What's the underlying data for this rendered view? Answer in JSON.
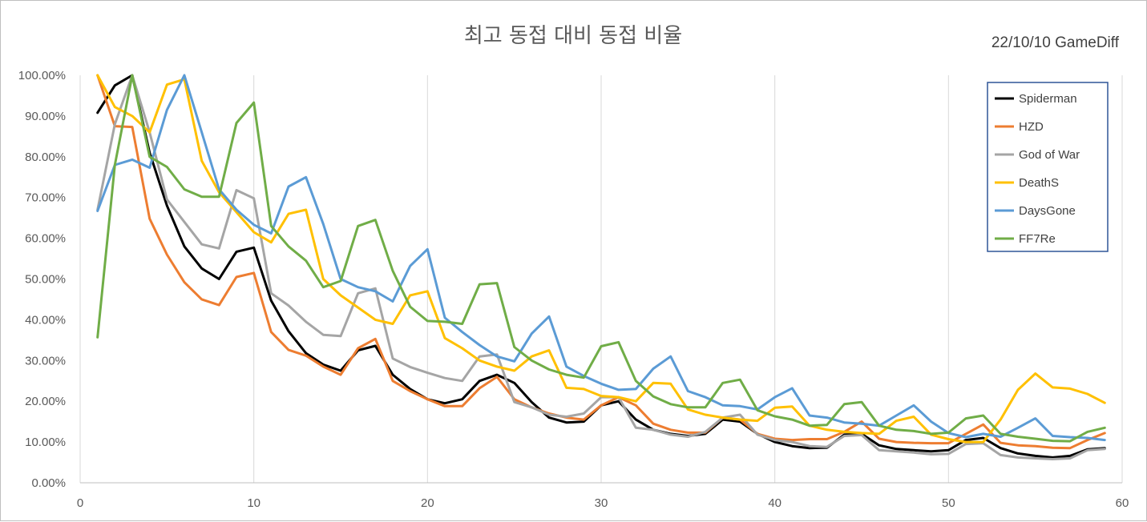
{
  "chart_data": {
    "type": "line",
    "title": "최고 동접 대비 동접 비율",
    "subtitle": "22/10/10 GameDiff",
    "xlabel": "",
    "ylabel": "",
    "xlim": [
      0,
      60
    ],
    "ylim": [
      0,
      1
    ],
    "x_ticks": [
      "0",
      "10",
      "20",
      "30",
      "40",
      "50",
      "60"
    ],
    "y_ticks": [
      "0.00%",
      "10.00%",
      "20.00%",
      "30.00%",
      "40.00%",
      "50.00%",
      "60.00%",
      "70.00%",
      "80.00%",
      "90.00%",
      "100.00%"
    ],
    "grid": "vertical",
    "legend_position": "top-right",
    "x": [
      1,
      2,
      3,
      4,
      5,
      6,
      7,
      8,
      9,
      10,
      11,
      12,
      13,
      14,
      15,
      16,
      17,
      18,
      19,
      20,
      21,
      22,
      23,
      24,
      25,
      26,
      27,
      28,
      29,
      30,
      31,
      32,
      33,
      34,
      35,
      36,
      37,
      38,
      39,
      40,
      41,
      42,
      43,
      44,
      45,
      46,
      47,
      48,
      49,
      50,
      51,
      52,
      53,
      54,
      55,
      56,
      57,
      58,
      59
    ],
    "series": [
      {
        "name": "Spiderman",
        "color": "#000000",
        "values": [
          0.908,
          0.975,
          1.0,
          0.81,
          0.68,
          0.58,
          0.526,
          0.5,
          0.567,
          0.577,
          0.447,
          0.372,
          0.318,
          0.29,
          0.275,
          0.325,
          0.336,
          0.265,
          0.23,
          0.205,
          0.195,
          0.205,
          0.25,
          0.265,
          0.245,
          0.198,
          0.16,
          0.148,
          0.15,
          0.19,
          0.2,
          0.155,
          0.13,
          0.12,
          0.115,
          0.12,
          0.155,
          0.15,
          0.12,
          0.1,
          0.09,
          0.085,
          0.086,
          0.118,
          0.12,
          0.092,
          0.083,
          0.08,
          0.077,
          0.08,
          0.105,
          0.11,
          0.085,
          0.072,
          0.066,
          0.062,
          0.066,
          0.082,
          0.085
        ]
      },
      {
        "name": "HZD",
        "color": "#ed7d31",
        "values": [
          1.0,
          0.875,
          0.873,
          0.648,
          0.56,
          0.492,
          0.45,
          0.436,
          0.505,
          0.515,
          0.37,
          0.326,
          0.312,
          0.285,
          0.265,
          0.33,
          0.353,
          0.25,
          0.225,
          0.205,
          0.188,
          0.188,
          0.232,
          0.26,
          0.205,
          0.185,
          0.17,
          0.16,
          0.155,
          0.19,
          0.21,
          0.19,
          0.145,
          0.13,
          0.123,
          0.123,
          0.16,
          0.155,
          0.12,
          0.108,
          0.105,
          0.107,
          0.107,
          0.125,
          0.15,
          0.108,
          0.1,
          0.098,
          0.097,
          0.097,
          0.12,
          0.143,
          0.098,
          0.092,
          0.09,
          0.086,
          0.085,
          0.105,
          0.122
        ]
      },
      {
        "name": "God of War",
        "color": "#a5a5a5",
        "values": [
          0.67,
          0.88,
          1.0,
          0.86,
          0.695,
          0.64,
          0.585,
          0.575,
          0.718,
          0.698,
          0.465,
          0.435,
          0.395,
          0.363,
          0.36,
          0.465,
          0.477,
          0.305,
          0.284,
          0.27,
          0.257,
          0.25,
          0.31,
          0.315,
          0.198,
          0.185,
          0.167,
          0.162,
          0.17,
          0.21,
          0.21,
          0.135,
          0.13,
          0.118,
          0.113,
          0.125,
          0.16,
          0.167,
          0.118,
          0.105,
          0.1,
          0.09,
          0.088,
          0.115,
          0.117,
          0.08,
          0.077,
          0.074,
          0.07,
          0.071,
          0.095,
          0.097,
          0.068,
          0.062,
          0.06,
          0.058,
          0.06,
          0.08,
          0.083
        ]
      },
      {
        "name": "DeathS",
        "color": "#ffc000",
        "values": [
          1.0,
          0.922,
          0.9,
          0.86,
          0.977,
          0.99,
          0.79,
          0.713,
          0.664,
          0.615,
          0.59,
          0.66,
          0.67,
          0.5,
          0.46,
          0.43,
          0.4,
          0.39,
          0.46,
          0.47,
          0.355,
          0.33,
          0.3,
          0.285,
          0.275,
          0.31,
          0.325,
          0.233,
          0.23,
          0.213,
          0.21,
          0.2,
          0.245,
          0.243,
          0.18,
          0.167,
          0.16,
          0.155,
          0.152,
          0.184,
          0.187,
          0.14,
          0.13,
          0.125,
          0.122,
          0.12,
          0.152,
          0.162,
          0.118,
          0.107,
          0.1,
          0.1,
          0.155,
          0.228,
          0.268,
          0.234,
          0.231,
          0.218,
          0.196
        ]
      },
      {
        "name": "DaysGone",
        "color": "#5b9bd5",
        "values": [
          0.667,
          0.78,
          0.793,
          0.773,
          0.915,
          1.0,
          0.86,
          0.72,
          0.67,
          0.633,
          0.612,
          0.727,
          0.75,
          0.635,
          0.5,
          0.48,
          0.47,
          0.445,
          0.532,
          0.573,
          0.405,
          0.37,
          0.338,
          0.31,
          0.298,
          0.366,
          0.408,
          0.285,
          0.262,
          0.243,
          0.228,
          0.23,
          0.28,
          0.31,
          0.225,
          0.21,
          0.19,
          0.188,
          0.18,
          0.21,
          0.232,
          0.165,
          0.16,
          0.148,
          0.145,
          0.14,
          0.165,
          0.19,
          0.15,
          0.122,
          0.112,
          0.12,
          0.113,
          0.135,
          0.158,
          0.115,
          0.112,
          0.11,
          0.105
        ]
      },
      {
        "name": "FF7Re",
        "color": "#70ad47",
        "values": [
          0.357,
          0.78,
          1.0,
          0.8,
          0.775,
          0.72,
          0.702,
          0.702,
          0.883,
          0.933,
          0.63,
          0.58,
          0.545,
          0.48,
          0.495,
          0.63,
          0.645,
          0.52,
          0.432,
          0.397,
          0.395,
          0.39,
          0.487,
          0.49,
          0.333,
          0.3,
          0.278,
          0.265,
          0.258,
          0.335,
          0.345,
          0.25,
          0.212,
          0.193,
          0.185,
          0.185,
          0.245,
          0.253,
          0.178,
          0.163,
          0.155,
          0.14,
          0.142,
          0.193,
          0.198,
          0.14,
          0.13,
          0.127,
          0.12,
          0.123,
          0.158,
          0.165,
          0.12,
          0.113,
          0.108,
          0.103,
          0.102,
          0.125,
          0.135
        ]
      }
    ]
  }
}
